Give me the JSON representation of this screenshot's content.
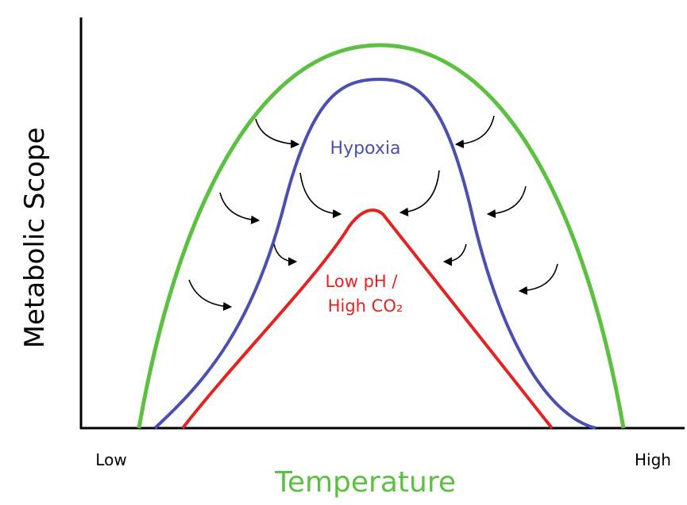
{
  "axes": {
    "y_label": "Metabolic Scope",
    "x_label": "Temperature",
    "x_low": "Low",
    "x_high": "High"
  },
  "curves": [
    {
      "label": "Hypoxia"
    },
    {
      "label_lines": [
        "Low pH /",
        "High CO₂"
      ]
    }
  ]
}
